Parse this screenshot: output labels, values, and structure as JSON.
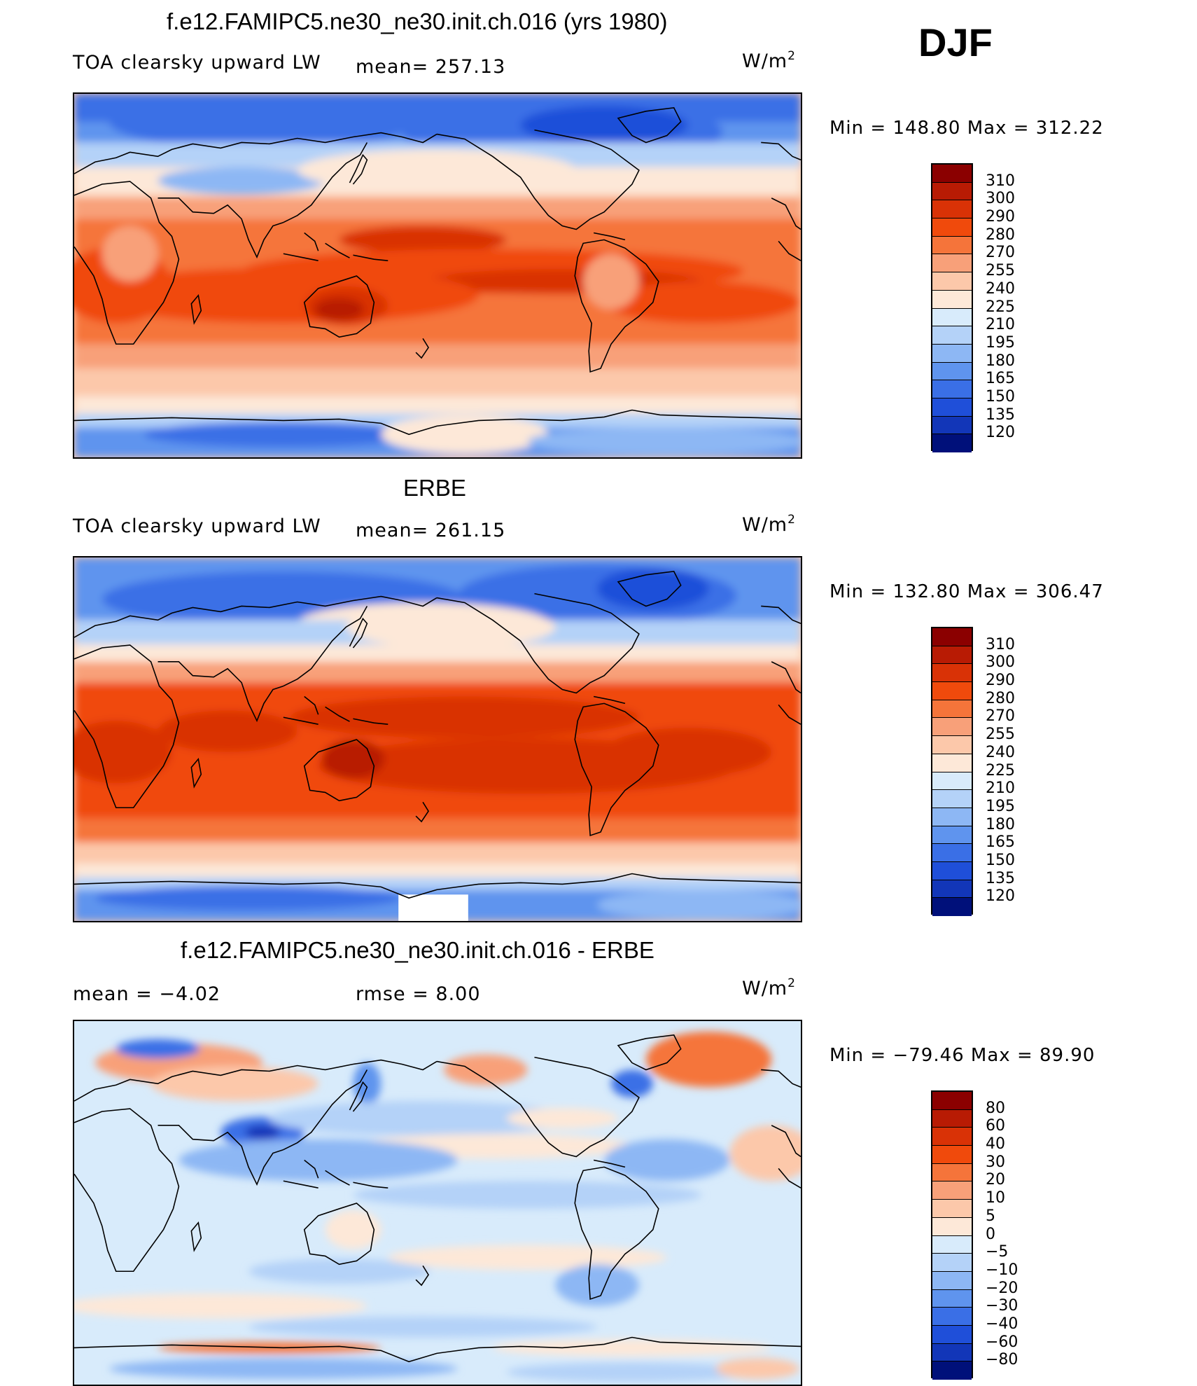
{
  "season": "DJF",
  "panels": [
    {
      "title": "f.e12.FAMIPC5.ne30_ne30.init.ch.016 (yrs 1980)",
      "left_label": "TOA clearsky upward LW",
      "stat1": "mean= 257.13",
      "stat2": "",
      "units": "W/m",
      "units_sup": "2",
      "minmax": "Min  =  148.80  Max  =  312.22",
      "scheme": "abs"
    },
    {
      "title": "ERBE",
      "left_label": "TOA clearsky upward LW",
      "stat1": "mean= 261.15",
      "stat2": "",
      "units": "W/m",
      "units_sup": "2",
      "minmax": "Min  =  132.80  Max  =  306.47",
      "scheme": "abs"
    },
    {
      "title": "f.e12.FAMIPC5.ne30_ne30.init.ch.016 - ERBE",
      "left_label": "mean  =    −4.02",
      "stat1": "rmse  =     8.00",
      "stat2": "",
      "units": "W/m",
      "units_sup": "2",
      "minmax": "Min  =  −79.46  Max  =    89.90",
      "scheme": "diff"
    }
  ],
  "colorbars": {
    "abs": {
      "ticks": [
        "310",
        "300",
        "290",
        "280",
        "270",
        "255",
        "240",
        "225",
        "210",
        "195",
        "180",
        "165",
        "150",
        "135",
        "120"
      ],
      "colors": [
        "#8b0000",
        "#b81b04",
        "#d93206",
        "#f04a0c",
        "#f5743a",
        "#f8a079",
        "#fcc8aa",
        "#fde8d8",
        "#d8ebfb",
        "#b4d2f8",
        "#8db7f4",
        "#5f94ee",
        "#3a6fe6",
        "#1f4fd9",
        "#1236b8",
        "#00107a"
      ]
    },
    "diff": {
      "ticks": [
        "80",
        "60",
        "40",
        "30",
        "20",
        "10",
        "5",
        "0",
        "−5",
        "−10",
        "−20",
        "−30",
        "−40",
        "−60",
        "−80"
      ],
      "colors": [
        "#8b0000",
        "#b81b04",
        "#d93206",
        "#f04a0c",
        "#f5743a",
        "#f8a079",
        "#fcc8aa",
        "#fde8d8",
        "#d8ebfb",
        "#b4d2f8",
        "#8db7f4",
        "#5f94ee",
        "#3a6fe6",
        "#1f4fd9",
        "#1236b8",
        "#00107a"
      ]
    }
  }
}
